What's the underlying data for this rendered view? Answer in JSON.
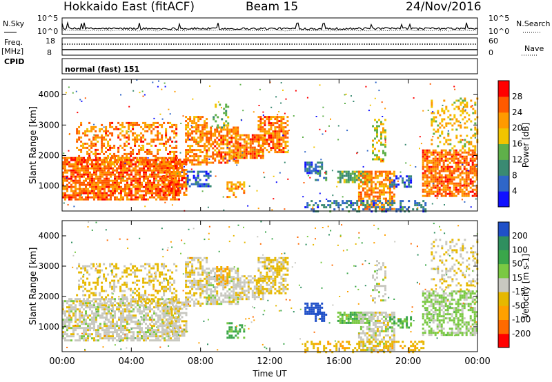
{
  "header": {
    "station": "Hokkaido East (fitACF)",
    "beam": "Beam 15",
    "date": "24/Nov/2016"
  },
  "strip_labels": {
    "nsky": "N.Sky",
    "nsearch": "N.Search",
    "freq": "Freq.",
    "mhz": "[MHz]",
    "nave": "Nave",
    "cpid": "CPID",
    "cpid_text": "normal (fast) 151",
    "nsky_ticks": [
      "10^5",
      "10^0"
    ],
    "nsearch_ticks": [
      "10^5",
      "10^0"
    ],
    "freq_ticks": [
      "18",
      "8"
    ],
    "nave_ticks": [
      "60",
      "0"
    ]
  },
  "colors": {
    "power_scale": [
      "#1010ff",
      "#2f66c8",
      "#3a8a72",
      "#5fb04a",
      "#f2c400",
      "#ff9a00",
      "#ff5a00",
      "#ff0000"
    ],
    "velocity_scale": [
      "#ff0000",
      "#ff6a00",
      "#ffa000",
      "#e6b800",
      "#c8c8c0",
      "#7ac943",
      "#3aa64a",
      "#2f8f5f",
      "#2050c8"
    ]
  },
  "chart_data": [
    {
      "type": "heatmap",
      "title": "Power",
      "ylabel": "Slant Range [km]",
      "xlabel": "Time UT",
      "x_ticks": [
        "00:00",
        "04:00",
        "08:00",
        "12:00",
        "16:00",
        "20:00",
        "00:00"
      ],
      "y_ticks": [
        1000,
        2000,
        3000,
        4000
      ],
      "ylim": [
        180,
        4500
      ],
      "xlim_hours": [
        0,
        24
      ],
      "colorbar": {
        "label": "Power [dB]",
        "ticks": [
          4,
          8,
          12,
          16,
          20,
          24,
          28
        ],
        "range": [
          0,
          32
        ]
      },
      "regions": [
        {
          "t0": 0.0,
          "t1": 6.8,
          "r0": 550,
          "r1": 1950,
          "v": 30,
          "d": 0.78
        },
        {
          "t0": 0.8,
          "t1": 6.6,
          "r0": 1700,
          "r1": 3100,
          "v": 29,
          "d": 0.42
        },
        {
          "t0": 5.8,
          "t1": 7.2,
          "r0": 700,
          "r1": 1900,
          "v": 30,
          "d": 0.7
        },
        {
          "t0": 7.1,
          "t1": 8.4,
          "r0": 1700,
          "r1": 3300,
          "v": 28,
          "d": 0.62
        },
        {
          "t0": 7.2,
          "t1": 8.6,
          "r0": 1000,
          "r1": 1500,
          "v": 12,
          "d": 0.5
        },
        {
          "t0": 8.3,
          "t1": 10.2,
          "r0": 1750,
          "r1": 2950,
          "v": 29,
          "d": 0.68
        },
        {
          "t0": 10.0,
          "t1": 11.6,
          "r0": 1900,
          "r1": 2700,
          "v": 29,
          "d": 0.7
        },
        {
          "t0": 11.3,
          "t1": 13.0,
          "r0": 2100,
          "r1": 3300,
          "v": 29,
          "d": 0.72
        },
        {
          "t0": 8.7,
          "t1": 9.6,
          "r0": 2900,
          "r1": 3700,
          "v": 19,
          "d": 0.3
        },
        {
          "t0": 9.5,
          "t1": 10.5,
          "r0": 650,
          "r1": 1150,
          "v": 26,
          "d": 0.45
        },
        {
          "t0": 14.0,
          "t1": 15.0,
          "r0": 1450,
          "r1": 1800,
          "v": 12,
          "d": 0.75
        },
        {
          "t0": 14.6,
          "t1": 15.2,
          "r0": 1200,
          "r1": 1500,
          "v": 14,
          "d": 0.45
        },
        {
          "t0": 15.9,
          "t1": 17.9,
          "r0": 1150,
          "r1": 1500,
          "v": 18,
          "d": 0.75
        },
        {
          "t0": 17.1,
          "t1": 19.2,
          "r0": 250,
          "r1": 1500,
          "v": 28,
          "d": 0.62
        },
        {
          "t0": 18.9,
          "t1": 20.2,
          "r0": 1000,
          "r1": 1350,
          "v": 12,
          "d": 0.5
        },
        {
          "t0": 17.9,
          "t1": 18.7,
          "r0": 1800,
          "r1": 3200,
          "v": 22,
          "d": 0.35
        },
        {
          "t0": 14.0,
          "t1": 21.0,
          "r0": 190,
          "r1": 540,
          "v": 13,
          "d": 0.4
        },
        {
          "t0": 20.8,
          "t1": 24.0,
          "r0": 700,
          "r1": 2200,
          "v": 30,
          "d": 0.75
        },
        {
          "t0": 21.3,
          "t1": 24.0,
          "r0": 2200,
          "r1": 3900,
          "v": 24,
          "d": 0.28
        }
      ]
    },
    {
      "type": "heatmap",
      "title": "Velocity",
      "ylabel": "Slant Range [km]",
      "xlabel": "Time UT",
      "x_ticks": [
        "00:00",
        "04:00",
        "08:00",
        "12:00",
        "16:00",
        "20:00",
        "00:00"
      ],
      "y_ticks": [
        1000,
        2000,
        3000,
        4000
      ],
      "ylim": [
        180,
        4500
      ],
      "xlim_hours": [
        0,
        24
      ],
      "colorbar": {
        "label": "Velocity [m s-1]",
        "ticks": [
          200,
          100,
          50,
          15,
          -15,
          -50,
          -100,
          -200
        ],
        "range": [
          -250,
          250
        ]
      },
      "regions": [
        {
          "t0": 0.0,
          "t1": 6.8,
          "r0": 550,
          "r1": 1950,
          "v": 0,
          "d": 0.7
        },
        {
          "t0": 0.8,
          "t1": 6.6,
          "r0": 1700,
          "r1": 3100,
          "v": -20,
          "d": 0.35
        },
        {
          "t0": 5.8,
          "t1": 7.2,
          "r0": 700,
          "r1": 1900,
          "v": -5,
          "d": 0.6
        },
        {
          "t0": 7.1,
          "t1": 8.4,
          "r0": 1700,
          "r1": 3300,
          "v": -10,
          "d": 0.55
        },
        {
          "t0": 8.3,
          "t1": 10.2,
          "r0": 1750,
          "r1": 2950,
          "v": 0,
          "d": 0.6
        },
        {
          "t0": 8.9,
          "t1": 9.6,
          "r0": 2400,
          "r1": 3000,
          "v": -60,
          "d": 0.5
        },
        {
          "t0": 10.0,
          "t1": 11.6,
          "r0": 1900,
          "r1": 2700,
          "v": -5,
          "d": 0.65
        },
        {
          "t0": 11.3,
          "t1": 13.0,
          "r0": 2100,
          "r1": 3300,
          "v": -20,
          "d": 0.6
        },
        {
          "t0": 9.5,
          "t1": 10.5,
          "r0": 650,
          "r1": 1150,
          "v": 60,
          "d": 0.4
        },
        {
          "t0": 14.0,
          "t1": 15.0,
          "r0": 1450,
          "r1": 1800,
          "v": 240,
          "d": 0.85
        },
        {
          "t0": 14.6,
          "t1": 15.2,
          "r0": 1200,
          "r1": 1500,
          "v": 230,
          "d": 0.55
        },
        {
          "t0": 15.9,
          "t1": 17.9,
          "r0": 1150,
          "r1": 1500,
          "v": 45,
          "d": 0.75
        },
        {
          "t0": 17.1,
          "t1": 19.2,
          "r0": 250,
          "r1": 1500,
          "v": 0,
          "d": 0.6
        },
        {
          "t0": 18.9,
          "t1": 20.2,
          "r0": 1000,
          "r1": 1350,
          "v": 45,
          "d": 0.5
        },
        {
          "t0": 17.9,
          "t1": 18.7,
          "r0": 1800,
          "r1": 3200,
          "v": 0,
          "d": 0.3
        },
        {
          "t0": 14.0,
          "t1": 21.0,
          "r0": 190,
          "r1": 540,
          "v": -40,
          "d": 0.35
        },
        {
          "t0": 20.8,
          "t1": 24.0,
          "r0": 700,
          "r1": 2200,
          "v": 20,
          "d": 0.6
        },
        {
          "t0": 21.3,
          "t1": 24.0,
          "r0": 2200,
          "r1": 3900,
          "v": -15,
          "d": 0.25
        }
      ]
    }
  ]
}
